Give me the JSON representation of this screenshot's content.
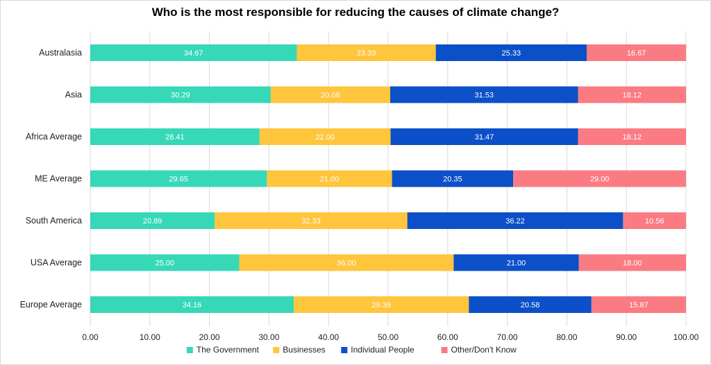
{
  "chart_data": {
    "type": "bar",
    "orientation": "horizontal",
    "stacked": true,
    "title": "Who is the most responsible for reducing the causes of climate change?",
    "categories": [
      "Australasia",
      "Asia",
      "Africa Average",
      "ME Average",
      "South America",
      "USA Average",
      "Europe Average"
    ],
    "series": [
      {
        "name": "The Government",
        "color": "#36d8b8",
        "values": [
          34.67,
          30.29,
          28.41,
          29.65,
          20.89,
          25.0,
          34.16
        ],
        "labels": [
          "34.67",
          "30.29",
          "28.41",
          "29.65",
          "20.89",
          "25.00",
          "34.16"
        ]
      },
      {
        "name": "Businesses",
        "color": "#ffc53d",
        "values": [
          23.33,
          20.06,
          22.0,
          21.0,
          32.33,
          36.0,
          29.39
        ],
        "labels": [
          "23.33",
          "20.06",
          "22.00",
          "21.00",
          "32.33",
          "36.00",
          "29.39"
        ]
      },
      {
        "name": "Individual People",
        "color": "#0b50c8",
        "values": [
          25.33,
          31.53,
          31.47,
          20.35,
          36.22,
          21.0,
          20.58
        ],
        "labels": [
          "25.33",
          "31.53",
          "31.47",
          "20.35",
          "36.22",
          "21.00",
          "20.58"
        ]
      },
      {
        "name": "Other/Don't Know",
        "color": "#fb7b83",
        "values": [
          16.67,
          18.12,
          18.12,
          29.0,
          10.56,
          18.0,
          15.87
        ],
        "labels": [
          "16.67",
          "18.12",
          "18.12",
          "29.00",
          "10.56",
          "18.00",
          "15.87"
        ]
      }
    ],
    "xlim": [
      0,
      100
    ],
    "xticks": [
      "0.00",
      "10.00",
      "20.00",
      "30.00",
      "40.00",
      "50.00",
      "60.00",
      "70.00",
      "80.00",
      "90.00",
      "100.00"
    ],
    "grid": true,
    "legend_position": "bottom"
  }
}
